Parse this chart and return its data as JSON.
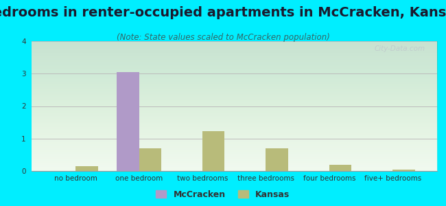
{
  "title": "Bedrooms in renter-occupied apartments in McCracken, Kansas",
  "subtitle": "(Note: State values scaled to McCracken population)",
  "categories": [
    "no bedroom",
    "one bedroom",
    "two bedrooms",
    "three bedrooms",
    "four bedrooms",
    "five+ bedrooms"
  ],
  "mccracken_values": [
    0,
    3.05,
    0,
    0,
    0,
    0
  ],
  "kansas_values": [
    0.15,
    0.7,
    1.22,
    0.7,
    0.18,
    0.05
  ],
  "mccracken_color": "#b09ac8",
  "kansas_color": "#b8bb7a",
  "bar_width": 0.35,
  "ylim": [
    0,
    4
  ],
  "yticks": [
    0,
    1,
    2,
    3,
    4
  ],
  "outer_bg_color": "#00eeff",
  "grid_color": "#bbbbbb",
  "title_fontsize": 14,
  "subtitle_fontsize": 8.5,
  "tick_fontsize": 7.5,
  "legend_fontsize": 9,
  "watermark_text": "City-Data.com",
  "watermark_color": "#c0c8cc"
}
